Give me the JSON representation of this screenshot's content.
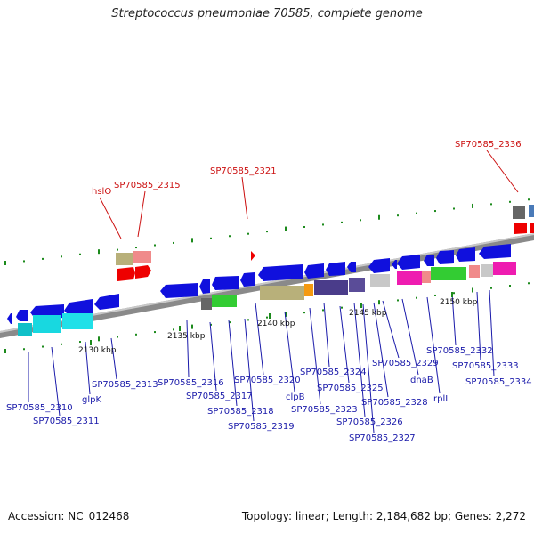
{
  "title": "Streptococcus pneumoniae 70585, complete genome",
  "footer": {
    "accession": "Accession: NC_012468",
    "summary": "Topology: linear; Length: 2,184,682 bp; Genes: 2,272"
  },
  "colors": {
    "forward_gene": "#1010dd",
    "label_blue": "#1a1aaa",
    "label_red": "#cc1111",
    "backbone": "#8a8a8a",
    "tick": "#1c8a1c"
  },
  "ticks": [
    "2130 kbp",
    "2135 kbp",
    "2140 kbp",
    "2145 kbp",
    "2150 kbp"
  ],
  "red_labels": [
    "hslO",
    "SP70585_2315",
    "SP70585_2321",
    "SP70585_2336"
  ],
  "blue_labels": [
    "SP70585_2310",
    "SP70585_2311",
    "glpK",
    "SP70585_2313",
    "SP70585_2316",
    "SP70585_2317",
    "SP70585_2318",
    "SP70585_2319",
    "SP70585_2320",
    "clpB",
    "SP70585_2323",
    "SP70585_2324",
    "SP70585_2325",
    "SP70585_2326",
    "SP70585_2327",
    "SP70585_2328",
    "SP70585_2329",
    "dnaB",
    "rplI",
    "SP70585_2332",
    "SP70585_2333",
    "SP70585_2334"
  ]
}
